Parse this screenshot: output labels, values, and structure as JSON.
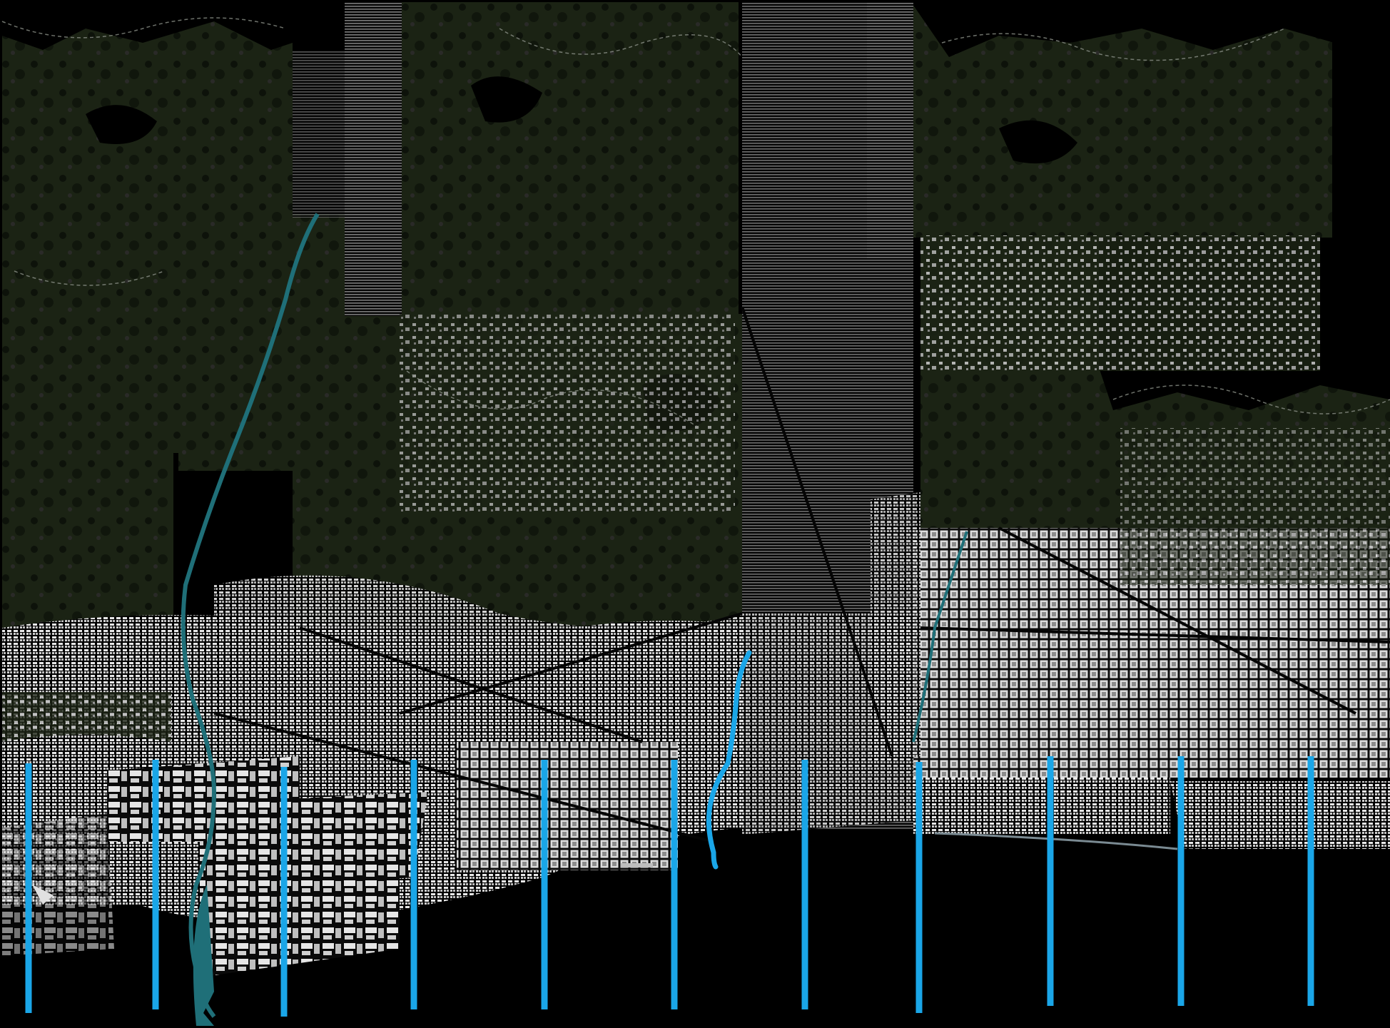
{
  "map": {
    "kind": "figure-ground urban map mosaic",
    "colors": {
      "background": "#000000",
      "vegetation": "#1b2314",
      "urban_fabric": "#d9d9d9",
      "river": "#1f6f78",
      "measurement_lines": "#1aa6e8",
      "administrative_boundary": "#8a8f86"
    },
    "overlay_lines": {
      "count": 11,
      "style": "vertical cyan transect lines"
    },
    "highlighted_river": {
      "style": "cyan meandering line"
    }
  }
}
